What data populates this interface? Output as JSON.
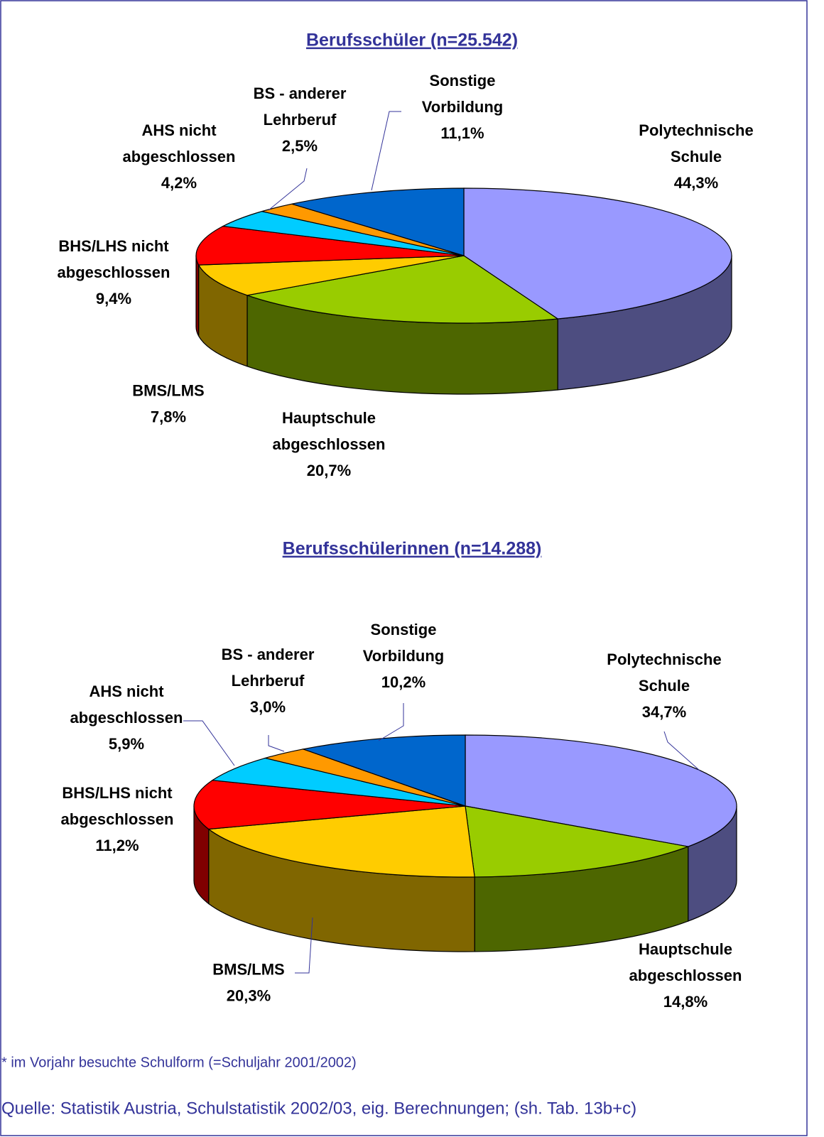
{
  "chart_data": [
    {
      "type": "pie3d",
      "title": "Berufsschüler (n=25.542)",
      "categories": [
        "Polytechnische\nSchule",
        "Hauptschule\nabgeschlossen",
        "BMS/LMS",
        "BHS/LHS nicht\nabgeschlossen",
        "AHS nicht\nabgeschlossen",
        "BS - anderer\nLehrberuf",
        "Sonstige\nVorbildung"
      ],
      "values": [
        44.3,
        20.7,
        7.8,
        9.4,
        4.2,
        2.5,
        11.1
      ],
      "value_labels": [
        "44,3%",
        "20,7%",
        "7,8%",
        "9,4%",
        "4,2%",
        "2,5%",
        "11,1%"
      ],
      "colors": [
        "#9999ff",
        "#99cc00",
        "#ffcc00",
        "#ff0000",
        "#00ccff",
        "#ff9900",
        "#0066cc"
      ]
    },
    {
      "type": "pie3d",
      "title": "Berufsschülerinnen (n=14.288)",
      "categories": [
        "Polytechnische\nSchule",
        "Hauptschule\nabgeschlossen",
        "BMS/LMS",
        "BHS/LHS nicht\nabgeschlossen",
        "AHS nicht\nabgeschlossen",
        "BS - anderer\nLehrberuf",
        "Sonstige\nVorbildung"
      ],
      "values": [
        34.7,
        14.8,
        20.3,
        11.2,
        5.9,
        3.0,
        10.2
      ],
      "value_labels": [
        "34,7%",
        "14,8%",
        "20,3%",
        "11,2%",
        "5,9%",
        "3,0%",
        "10,2%"
      ],
      "colors": [
        "#9999ff",
        "#99cc00",
        "#ffcc00",
        "#ff0000",
        "#00ccff",
        "#ff9900",
        "#0066cc"
      ]
    }
  ],
  "footnote": "* im Vorjahr besuchte Schulform (=Schuljahr 2001/2002)",
  "source": "Quelle: Statistik Austria, Schulstatistik 2002/03, eig. Berechnungen; (sh. Tab. 13b+c)"
}
